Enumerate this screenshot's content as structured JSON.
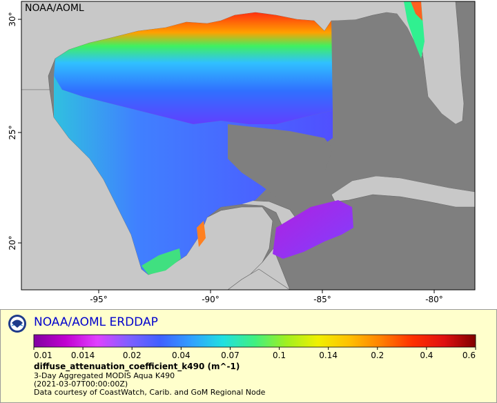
{
  "map": {
    "watermark": "NOAA/AOML",
    "x_ticks": [
      "-95°",
      "-90°",
      "-85°",
      "-80°"
    ],
    "y_ticks": [
      "30°",
      "25°",
      "20°"
    ],
    "colors": {
      "land": "#c8c8c8",
      "no_data": "#7f7f7f",
      "border": "#666666"
    }
  },
  "legend": {
    "title": "NOAA/AOML ERDDAP",
    "colorbar_ticks": [
      "0.01",
      "0.014",
      "0.02",
      "0.04",
      "0.07",
      "0.1",
      "0.14",
      "0.2",
      "0.4",
      "0.6"
    ],
    "colorbar_stops": [
      "#8000a0",
      "#c000d0",
      "#e040ff",
      "#8060ff",
      "#4060ff",
      "#30a0ff",
      "#20e0e0",
      "#40f080",
      "#a0f020",
      "#f0f000",
      "#ffc000",
      "#ff8000",
      "#ff3000",
      "#e01010",
      "#800000"
    ],
    "variable": "diffuse_attenuation_coefficient_k490 (m^-1)",
    "line1": "3-Day Aggregated MODIS Aqua K490",
    "line2": "(2021-03-07T00:00:00Z)",
    "line3": "Data courtesy of CoastWatch, Carib. and GoM Regional Node"
  }
}
